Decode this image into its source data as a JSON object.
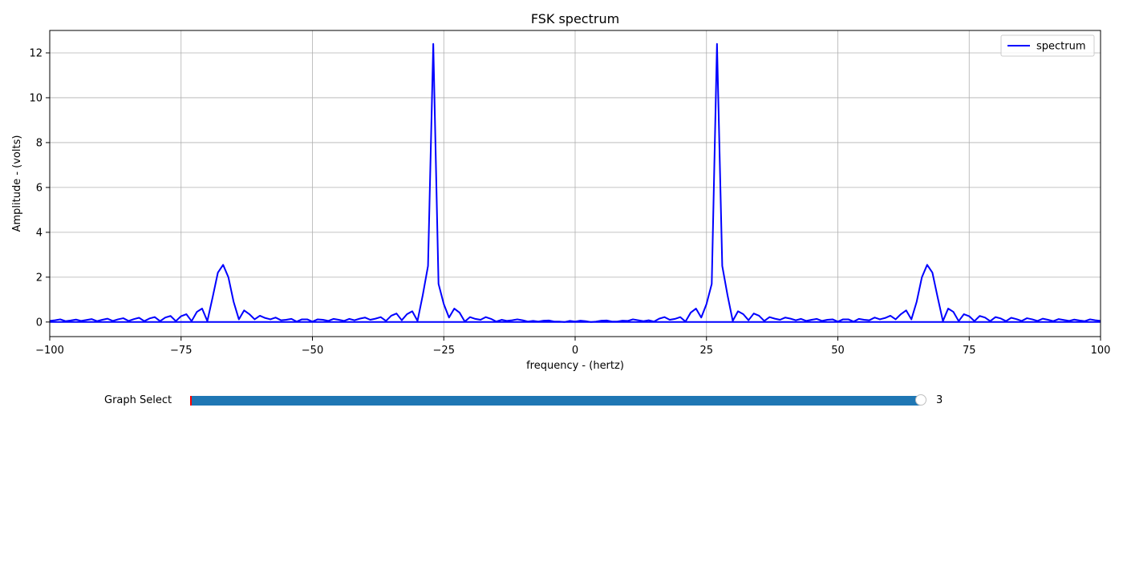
{
  "chart_data": {
    "type": "line",
    "title": "FSK spectrum",
    "xlabel": "frequency - (hertz)",
    "ylabel": "Amplitude - (volts)",
    "xlim": [
      -100,
      100
    ],
    "ylim": [
      -0.65,
      13.0
    ],
    "x_ticks": [
      -100,
      -75,
      -50,
      -25,
      0,
      25,
      50,
      75,
      100
    ],
    "x_tick_labels": [
      "−100",
      "−75",
      "−50",
      "−25",
      "0",
      "25",
      "50",
      "75",
      "100"
    ],
    "y_ticks": [
      0,
      2,
      4,
      6,
      8,
      10,
      12
    ],
    "y_tick_labels": [
      "0",
      "2",
      "4",
      "6",
      "8",
      "10",
      "12"
    ],
    "grid": true,
    "legend_position": "top-right",
    "series": [
      {
        "name": "spectrum",
        "color": "#0000ff",
        "points": [
          [
            -100,
            0.05
          ],
          [
            -99,
            0.08
          ],
          [
            -98,
            0.12
          ],
          [
            -97,
            0.04
          ],
          [
            -96,
            0.07
          ],
          [
            -95,
            0.11
          ],
          [
            -94,
            0.05
          ],
          [
            -93,
            0.09
          ],
          [
            -92,
            0.13
          ],
          [
            -91,
            0.04
          ],
          [
            -90,
            0.1
          ],
          [
            -89,
            0.15
          ],
          [
            -88,
            0.05
          ],
          [
            -87,
            0.12
          ],
          [
            -86,
            0.17
          ],
          [
            -85,
            0.05
          ],
          [
            -84,
            0.13
          ],
          [
            -83,
            0.19
          ],
          [
            -82,
            0.04
          ],
          [
            -81,
            0.16
          ],
          [
            -80,
            0.22
          ],
          [
            -79,
            0.04
          ],
          [
            -78,
            0.2
          ],
          [
            -77,
            0.27
          ],
          [
            -76,
            0.04
          ],
          [
            -75,
            0.26
          ],
          [
            -74,
            0.35
          ],
          [
            -73,
            0.04
          ],
          [
            -72,
            0.45
          ],
          [
            -71,
            0.6
          ],
          [
            -70,
            0.04
          ],
          [
            -69,
            1.1
          ],
          [
            -68,
            2.2
          ],
          [
            -67,
            2.55
          ],
          [
            -66,
            2.0
          ],
          [
            -65,
            0.9
          ],
          [
            -64,
            0.12
          ],
          [
            -63,
            0.52
          ],
          [
            -62,
            0.35
          ],
          [
            -61,
            0.12
          ],
          [
            -60,
            0.28
          ],
          [
            -59,
            0.18
          ],
          [
            -58,
            0.12
          ],
          [
            -57,
            0.2
          ],
          [
            -56,
            0.08
          ],
          [
            -55,
            0.1
          ],
          [
            -54,
            0.14
          ],
          [
            -53,
            0.02
          ],
          [
            -52,
            0.12
          ],
          [
            -51,
            0.12
          ],
          [
            -50,
            0.02
          ],
          [
            -49,
            0.12
          ],
          [
            -48,
            0.1
          ],
          [
            -47,
            0.05
          ],
          [
            -46,
            0.14
          ],
          [
            -45,
            0.1
          ],
          [
            -44,
            0.05
          ],
          [
            -43,
            0.14
          ],
          [
            -42,
            0.08
          ],
          [
            -41,
            0.15
          ],
          [
            -40,
            0.2
          ],
          [
            -39,
            0.1
          ],
          [
            -38,
            0.15
          ],
          [
            -37,
            0.22
          ],
          [
            -36,
            0.05
          ],
          [
            -35,
            0.28
          ],
          [
            -34,
            0.38
          ],
          [
            -33,
            0.08
          ],
          [
            -32,
            0.35
          ],
          [
            -31,
            0.48
          ],
          [
            -30,
            0.05
          ],
          [
            -29,
            1.2
          ],
          [
            -28,
            2.5
          ],
          [
            -27,
            12.4
          ],
          [
            -26,
            1.7
          ],
          [
            -25,
            0.8
          ],
          [
            -24,
            0.2
          ],
          [
            -23,
            0.6
          ],
          [
            -22,
            0.42
          ],
          [
            -21,
            0.02
          ],
          [
            -20,
            0.22
          ],
          [
            -19,
            0.14
          ],
          [
            -18,
            0.1
          ],
          [
            -17,
            0.22
          ],
          [
            -16,
            0.14
          ],
          [
            -15,
            0.02
          ],
          [
            -14,
            0.1
          ],
          [
            -13,
            0.05
          ],
          [
            -12,
            0.08
          ],
          [
            -11,
            0.12
          ],
          [
            -10,
            0.08
          ],
          [
            -9,
            0.02
          ],
          [
            -8,
            0.05
          ],
          [
            -7,
            0.02
          ],
          [
            -6,
            0.06
          ],
          [
            -5,
            0.07
          ],
          [
            -4,
            0.02
          ],
          [
            -3,
            0.02
          ],
          [
            -2,
            0.0
          ],
          [
            -1,
            0.05
          ],
          [
            0,
            0.02
          ],
          [
            1,
            0.06
          ],
          [
            2,
            0.04
          ],
          [
            3,
            0.0
          ],
          [
            4,
            0.02
          ],
          [
            5,
            0.06
          ],
          [
            6,
            0.07
          ],
          [
            7,
            0.02
          ],
          [
            8,
            0.02
          ],
          [
            9,
            0.06
          ],
          [
            10,
            0.05
          ],
          [
            11,
            0.12
          ],
          [
            12,
            0.08
          ],
          [
            13,
            0.04
          ],
          [
            14,
            0.08
          ],
          [
            15,
            0.02
          ],
          [
            16,
            0.15
          ],
          [
            17,
            0.22
          ],
          [
            18,
            0.1
          ],
          [
            19,
            0.14
          ],
          [
            20,
            0.22
          ],
          [
            21,
            0.02
          ],
          [
            22,
            0.42
          ],
          [
            23,
            0.6
          ],
          [
            24,
            0.2
          ],
          [
            25,
            0.8
          ],
          [
            26,
            1.7
          ],
          [
            27,
            12.4
          ],
          [
            28,
            2.5
          ],
          [
            29,
            1.2
          ],
          [
            30,
            0.05
          ],
          [
            31,
            0.48
          ],
          [
            32,
            0.35
          ],
          [
            33,
            0.08
          ],
          [
            34,
            0.38
          ],
          [
            35,
            0.28
          ],
          [
            36,
            0.05
          ],
          [
            37,
            0.22
          ],
          [
            38,
            0.15
          ],
          [
            39,
            0.1
          ],
          [
            40,
            0.2
          ],
          [
            41,
            0.15
          ],
          [
            42,
            0.08
          ],
          [
            43,
            0.14
          ],
          [
            44,
            0.05
          ],
          [
            45,
            0.1
          ],
          [
            46,
            0.14
          ],
          [
            47,
            0.05
          ],
          [
            48,
            0.1
          ],
          [
            49,
            0.12
          ],
          [
            50,
            0.02
          ],
          [
            51,
            0.12
          ],
          [
            52,
            0.12
          ],
          [
            53,
            0.02
          ],
          [
            54,
            0.14
          ],
          [
            55,
            0.1
          ],
          [
            56,
            0.08
          ],
          [
            57,
            0.2
          ],
          [
            58,
            0.12
          ],
          [
            59,
            0.18
          ],
          [
            60,
            0.28
          ],
          [
            61,
            0.12
          ],
          [
            62,
            0.35
          ],
          [
            63,
            0.52
          ],
          [
            64,
            0.12
          ],
          [
            65,
            0.9
          ],
          [
            66,
            2.0
          ],
          [
            67,
            2.55
          ],
          [
            68,
            2.2
          ],
          [
            69,
            1.1
          ],
          [
            70,
            0.04
          ],
          [
            71,
            0.6
          ],
          [
            72,
            0.45
          ],
          [
            73,
            0.04
          ],
          [
            74,
            0.35
          ],
          [
            75,
            0.26
          ],
          [
            76,
            0.04
          ],
          [
            77,
            0.27
          ],
          [
            78,
            0.2
          ],
          [
            79,
            0.04
          ],
          [
            80,
            0.22
          ],
          [
            81,
            0.16
          ],
          [
            82,
            0.04
          ],
          [
            83,
            0.19
          ],
          [
            84,
            0.13
          ],
          [
            85,
            0.05
          ],
          [
            86,
            0.17
          ],
          [
            87,
            0.12
          ],
          [
            88,
            0.05
          ],
          [
            89,
            0.15
          ],
          [
            90,
            0.1
          ],
          [
            91,
            0.04
          ],
          [
            92,
            0.13
          ],
          [
            93,
            0.09
          ],
          [
            94,
            0.05
          ],
          [
            95,
            0.11
          ],
          [
            96,
            0.07
          ],
          [
            97,
            0.04
          ],
          [
            98,
            0.12
          ],
          [
            99,
            0.08
          ],
          [
            100,
            0.05
          ]
        ]
      }
    ],
    "baseline": {
      "y": 0,
      "color": "#0000ff"
    },
    "axes_color": "#000000",
    "grid_color": "#b0b0b0"
  },
  "slider": {
    "label": "Graph Select",
    "value_text": "3",
    "fraction": 1.0,
    "fill_color": "#1f77b4",
    "min_marker_color": "#ff0000"
  }
}
